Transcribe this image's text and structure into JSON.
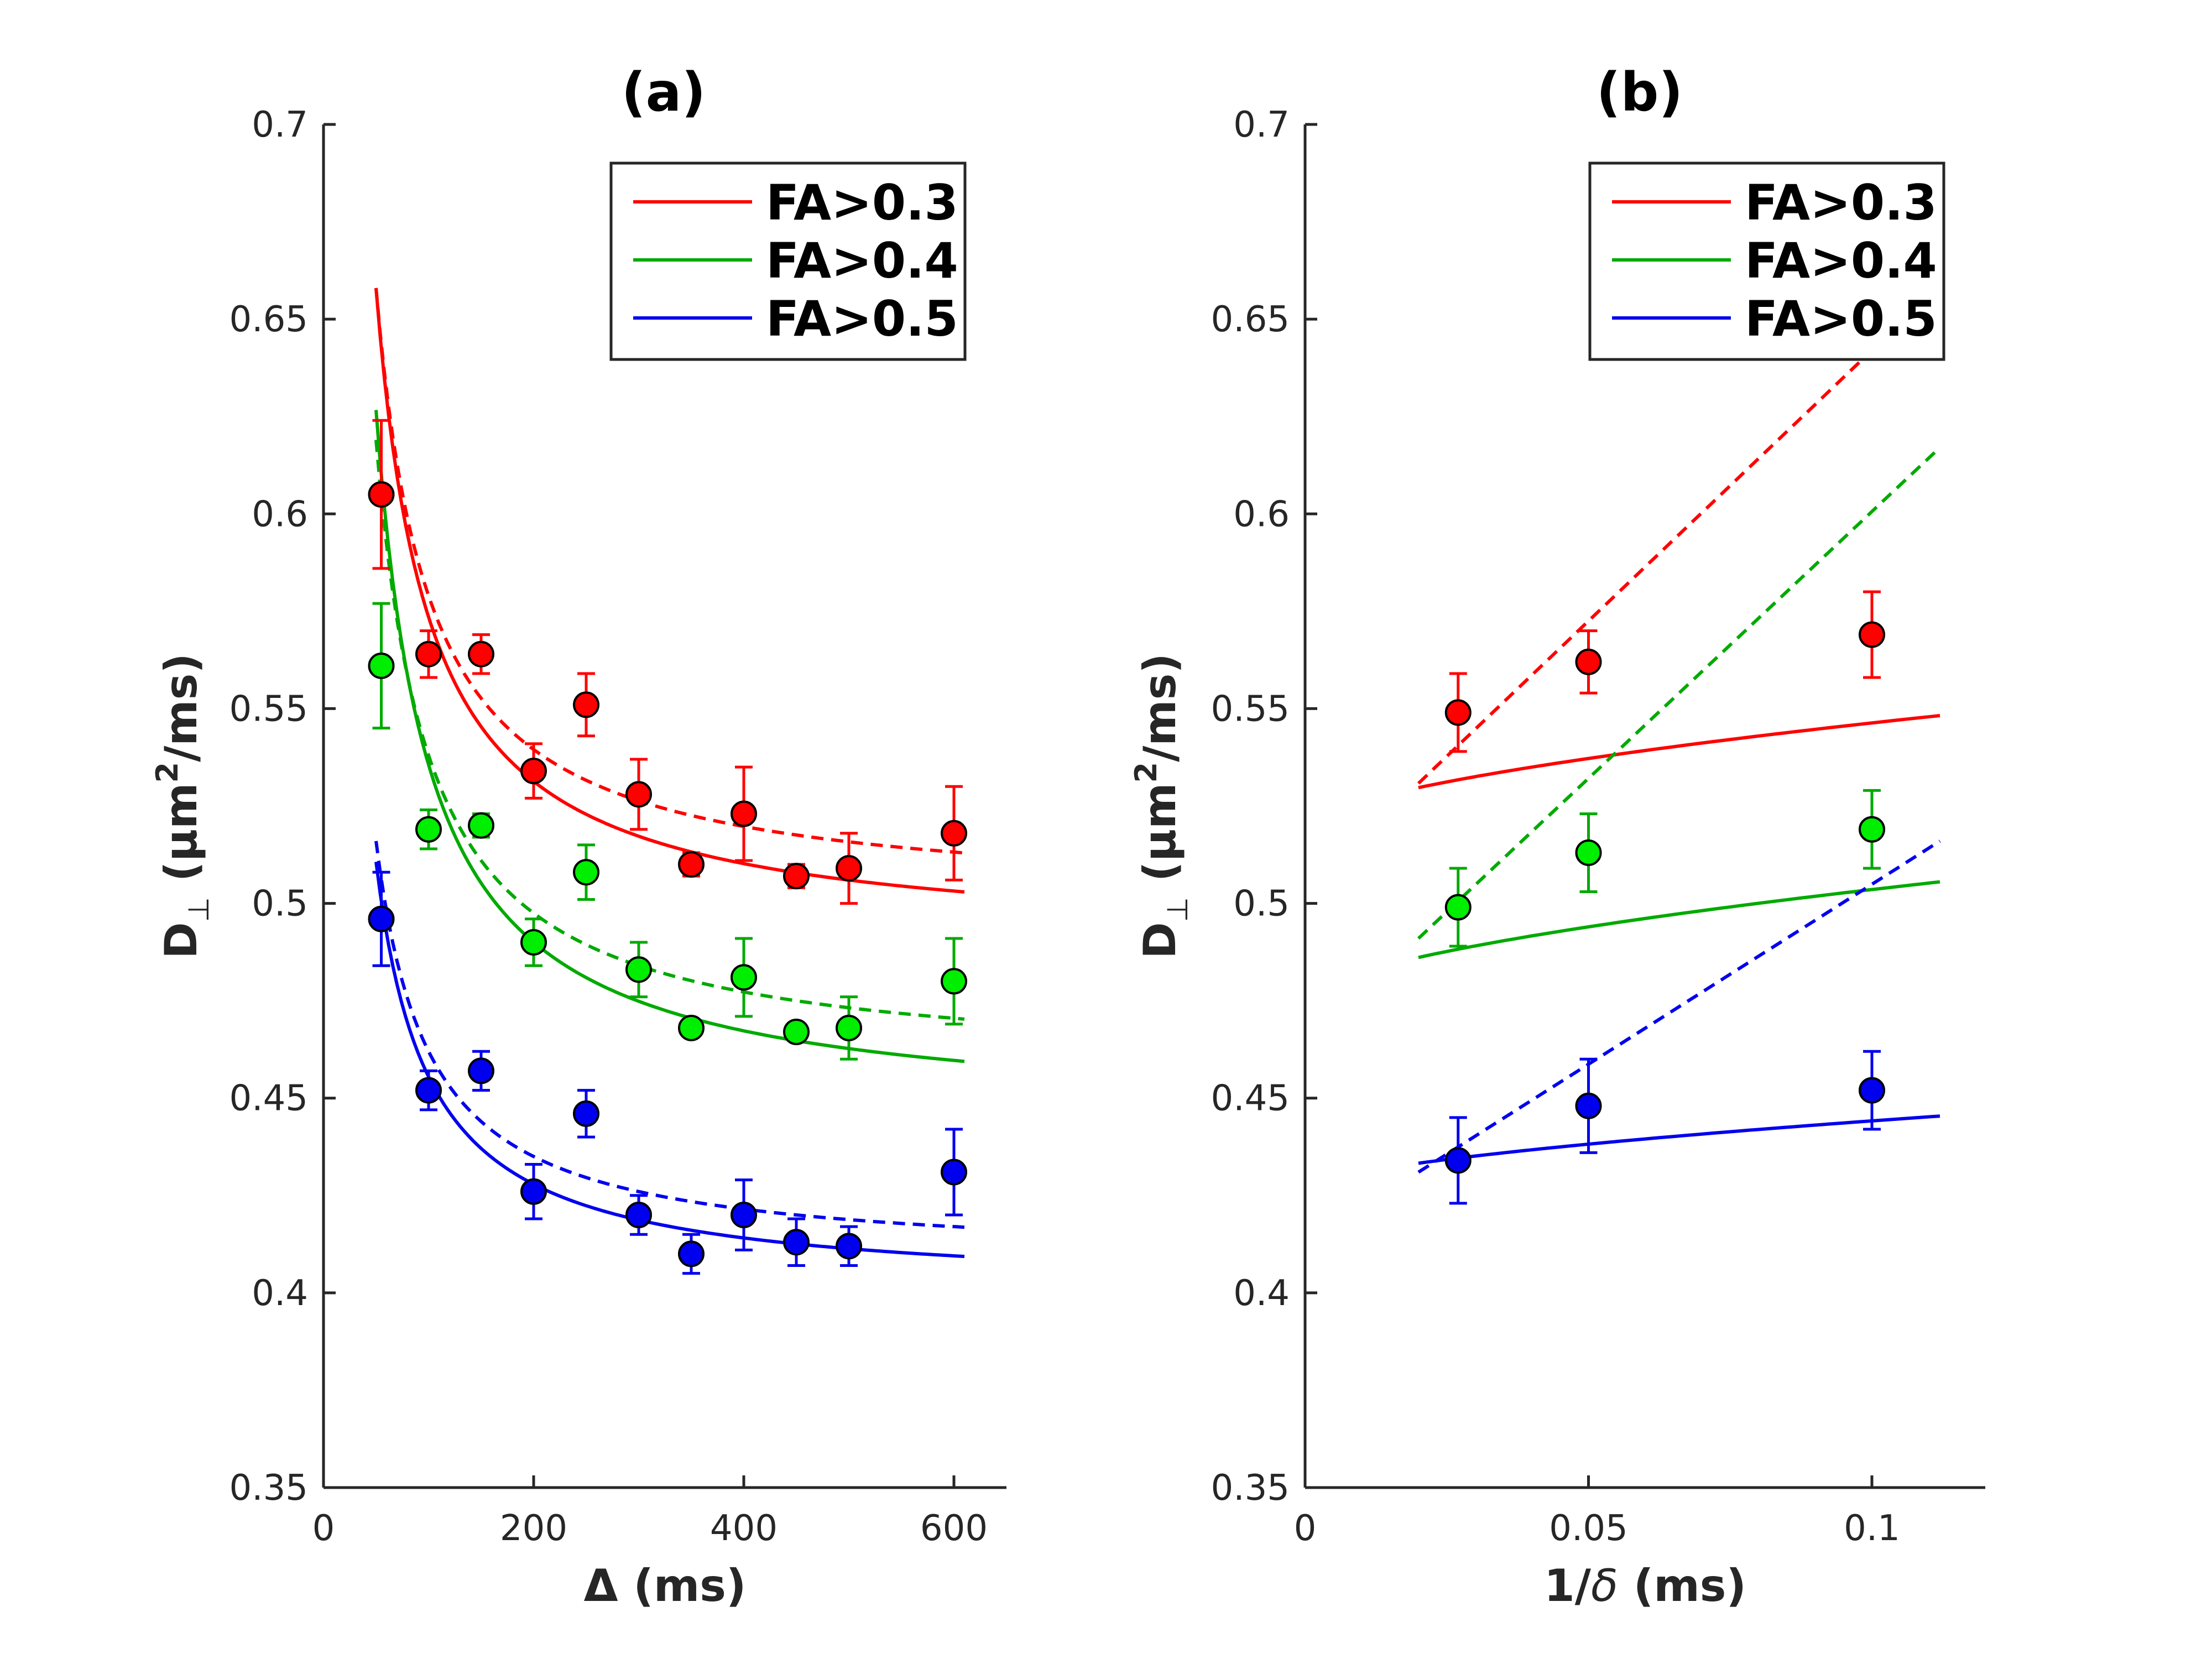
{
  "chart_data": [
    {
      "type": "scatter",
      "title": "(a)",
      "xlabel": "Δ (ms)",
      "ylabel_main": "D",
      "ylabel_sub": "⊥",
      "ylabel_unit_pre": "(μm",
      "ylabel_unit_sup": "2",
      "ylabel_unit_post": "/ms)",
      "xlim": [
        0,
        650
      ],
      "ylim": [
        0.35,
        0.7
      ],
      "xticks": [
        0,
        200,
        400,
        600
      ],
      "xtick_labels": [
        "0",
        "200",
        "400",
        "600"
      ],
      "yticks": [
        0.35,
        0.4,
        0.45,
        0.5,
        0.55,
        0.6,
        0.65,
        0.7
      ],
      "ytick_labels": [
        "0.35",
        "0.4",
        "0.45",
        "0.5",
        "0.55",
        "0.6",
        "0.65",
        "0.7"
      ],
      "legend_position": "top-right",
      "series": [
        {
          "name": "FA>0.3",
          "line_color": "#ff0000",
          "marker_color": "#ff0000",
          "x": [
            55,
            100,
            150,
            200,
            250,
            300,
            350,
            400,
            450,
            500,
            600
          ],
          "y": [
            0.605,
            0.564,
            0.564,
            0.534,
            0.551,
            0.528,
            0.51,
            0.523,
            0.507,
            0.509,
            0.518
          ],
          "err": [
            0.019,
            0.006,
            0.005,
            0.007,
            0.008,
            0.009,
            0.003,
            0.012,
            0.003,
            0.009,
            0.012
          ],
          "fit_solid": {
            "a": 0.4891,
            "b": 8.98,
            "p": 0.6
          },
          "fit_dashed": {
            "a": 0.5,
            "b": 7.9,
            "p": 1
          }
        },
        {
          "name": "FA>0.4",
          "line_color": "#00aa00",
          "marker_color": "#00ee00",
          "x": [
            55,
            100,
            150,
            200,
            250,
            300,
            350,
            400,
            450,
            500,
            600
          ],
          "y": [
            0.561,
            0.519,
            0.52,
            0.49,
            0.508,
            0.483,
            0.468,
            0.481,
            0.467,
            0.468,
            0.48
          ],
          "err": [
            0.016,
            0.005,
            0.003,
            0.006,
            0.007,
            0.007,
            0.002,
            0.01,
            0.002,
            0.008,
            0.011
          ],
          "fit_solid": {
            "a": 0.4445,
            "b": 9.69,
            "p": 0.6
          },
          "fit_dashed": {
            "a": 0.457,
            "b": 8.1,
            "p": 1
          }
        },
        {
          "name": "FA>0.5",
          "line_color": "#0000ee",
          "marker_color": "#0000ee",
          "x": [
            55,
            100,
            150,
            200,
            250,
            300,
            350,
            400,
            450,
            500,
            600
          ],
          "y": [
            0.496,
            0.452,
            0.457,
            0.426,
            0.446,
            0.42,
            0.41,
            0.42,
            0.413,
            0.412,
            0.431
          ],
          "err": [
            0.012,
            0.005,
            0.005,
            0.007,
            0.006,
            0.005,
            0.005,
            0.009,
            0.006,
            0.005,
            0.011
          ],
          "fit_solid": {
            "a": 0.4003,
            "b": 5.87,
            "p": 0.6
          },
          "fit_dashed": {
            "a": 0.408,
            "b": 5.4,
            "p": 1
          }
        }
      ]
    },
    {
      "type": "scatter",
      "title": "(b)",
      "xlabel_pre": "1/",
      "xlabel_sym": "δ",
      "xlabel_post": " (ms)",
      "ylabel_main": "D",
      "ylabel_sub": "⊥",
      "ylabel_unit_pre": "(μm",
      "ylabel_unit_sup": "2",
      "ylabel_unit_post": "/ms)",
      "xlim": [
        0,
        0.12
      ],
      "ylim": [
        0.35,
        0.7
      ],
      "xticks": [
        0,
        0.05,
        0.1
      ],
      "xtick_labels": [
        "0",
        "0.05",
        "0.1"
      ],
      "yticks": [
        0.35,
        0.4,
        0.45,
        0.5,
        0.55,
        0.6,
        0.65,
        0.7
      ],
      "ytick_labels": [
        "0.35",
        "0.4",
        "0.45",
        "0.5",
        "0.55",
        "0.6",
        "0.65",
        "0.7"
      ],
      "legend_position": "top-right",
      "series": [
        {
          "name": "FA>0.3",
          "line_color": "#ff0000",
          "marker_color": "#ff0000",
          "x": [
            0.027,
            0.05,
            0.1
          ],
          "y": [
            0.549,
            0.562,
            0.569
          ],
          "err": [
            0.01,
            0.008,
            0.011
          ],
          "fit_solid": {
            "x0": 0.02,
            "x1": 0.112,
            "a": 0.5195,
            "b": 0.2136
          },
          "fit_dashed": {
            "x0": 0.02,
            "x1": 0.112,
            "slope": 1.39,
            "intercept": 0.503
          }
        },
        {
          "name": "FA>0.4",
          "line_color": "#00aa00",
          "marker_color": "#00ee00",
          "x": [
            0.027,
            0.05,
            0.1
          ],
          "y": [
            0.499,
            0.513,
            0.519
          ],
          "err": [
            0.01,
            0.01,
            0.01
          ],
          "fit_solid": {
            "x0": 0.02,
            "x1": 0.112,
            "a": 0.4754,
            "b": 0.2241
          },
          "fit_dashed": {
            "x0": 0.02,
            "x1": 0.112,
            "slope": 1.37,
            "intercept": 0.4636
          }
        },
        {
          "name": "FA>0.5",
          "line_color": "#0000ee",
          "marker_color": "#0000ee",
          "x": [
            0.027,
            0.05,
            0.1
          ],
          "y": [
            0.434,
            0.448,
            0.452
          ],
          "err": [
            0.011,
            0.012,
            0.01
          ],
          "fit_solid": {
            "x0": 0.02,
            "x1": 0.112,
            "a": 0.4266,
            "b": 0.1397
          },
          "fit_dashed": {
            "x0": 0.02,
            "x1": 0.112,
            "slope": 0.924,
            "intercept": 0.4125
          }
        }
      ]
    }
  ]
}
